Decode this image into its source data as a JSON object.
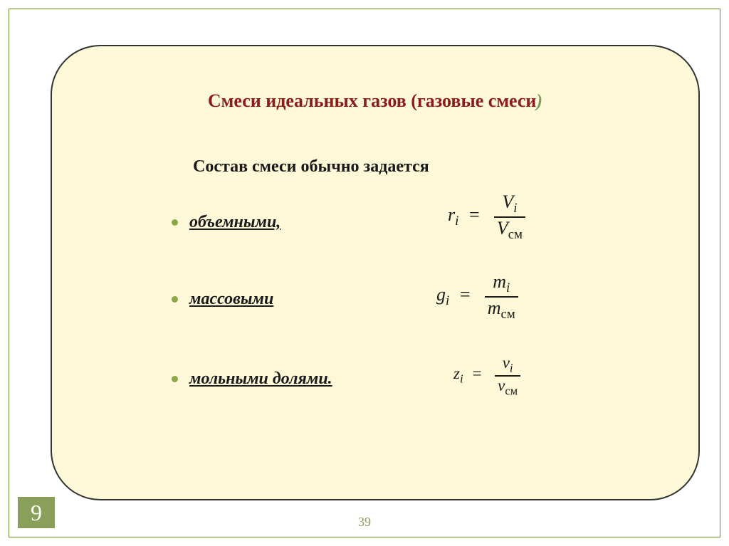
{
  "colors": {
    "card_bg": "#fcf8d8",
    "card_border": "#333333",
    "frame_border": "#6a8a2a",
    "title_color": "#8a1c1c",
    "paren_color": "#7fa05a",
    "text_color": "#1a1a1a",
    "bullet_color": "#8aa84a",
    "accent_green": "#8a9f5a"
  },
  "title": {
    "text_main": "Смеси идеальных газов  (газовые смеси",
    "paren_close": ")",
    "fontsize": 26
  },
  "subtitle": {
    "text": "Состав смеси обычно задается",
    "fontsize": 24
  },
  "bullets": {
    "item1": "объемными,",
    "item2": "массовыми",
    "item3": " мольными долями.",
    "fontsize": 24
  },
  "formulas": {
    "f1": {
      "lhs_base": "r",
      "lhs_sub": "i",
      "num_base": "V",
      "num_sub": "i",
      "den_base": "V",
      "den_sub": "см"
    },
    "f2": {
      "lhs_base": "g",
      "lhs_sub": "i",
      "num_base": "m",
      "num_sub": "i",
      "den_base": "m",
      "den_sub": "см"
    },
    "f3": {
      "lhs_base": "z",
      "lhs_sub": "i",
      "num_base": "ν",
      "num_sub": "i",
      "den_base": "ν",
      "den_sub": "см"
    }
  },
  "page_number": "39",
  "corner_number": "9"
}
